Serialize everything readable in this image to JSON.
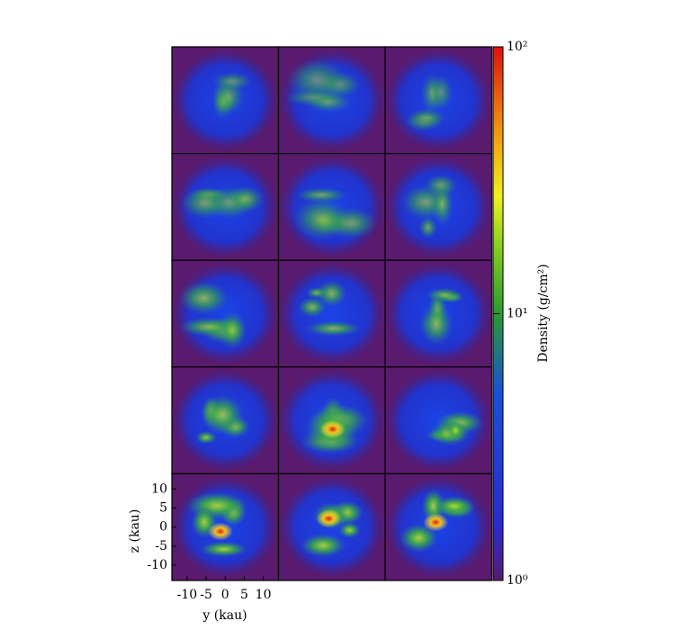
{
  "chart_data": {
    "type": "image-grid",
    "xlabel": "y (kau)",
    "ylabel": "z (kau)",
    "xlim": [
      -14,
      14
    ],
    "ylim": [
      -14,
      14
    ],
    "xticks": [
      -10,
      -5,
      0,
      5,
      10
    ],
    "yticks": [
      -10,
      -5,
      0,
      5,
      10
    ],
    "colorbar": {
      "label": "Density (g/cm²)",
      "lim": [
        1,
        100
      ],
      "log": true,
      "ticks": [
        {
          "value": 1,
          "label": "10⁰"
        },
        {
          "value": 10,
          "label": "10¹"
        },
        {
          "value": 100,
          "label": "10²"
        }
      ]
    }
  }
}
